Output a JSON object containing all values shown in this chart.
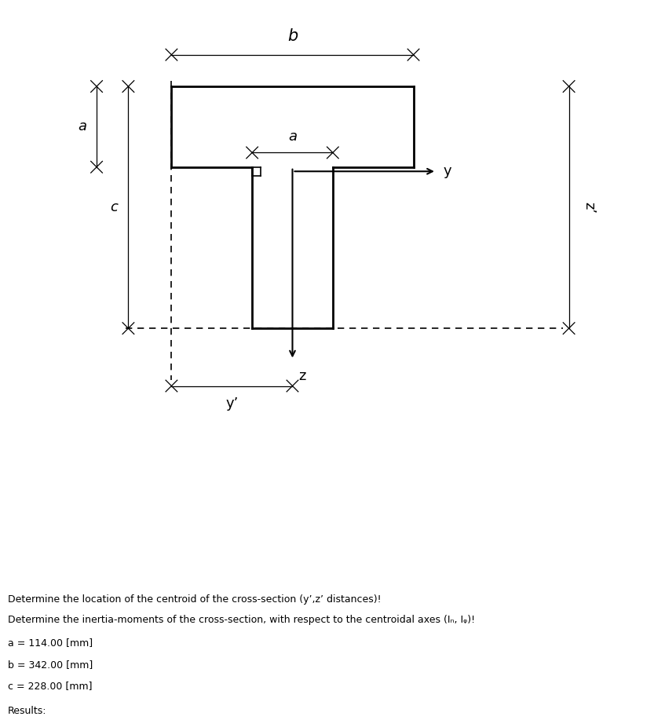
{
  "a": 114.0,
  "b": 342.0,
  "c": 228.0,
  "bg_color": "#ffffff",
  "line1": "Determine the location of the centroid of the cross-section (y’,z’ distances)!",
  "line2": "Determine the inertia-moments of the cross-section, with respect to the centroidal axes (Iₙ, Iᵩ)!",
  "param_a": "a = 114.00 [mm]",
  "param_b": "b = 342.00 [mm]",
  "param_c": "c = 228.00 [mm]",
  "results_label": "Results:",
  "label_a": "a",
  "label_b": "b",
  "label_c": "c",
  "label_y": "y",
  "label_z": "z",
  "label_yp": "y’",
  "label_zp": "z’",
  "text_bg": "#e0e0e0"
}
